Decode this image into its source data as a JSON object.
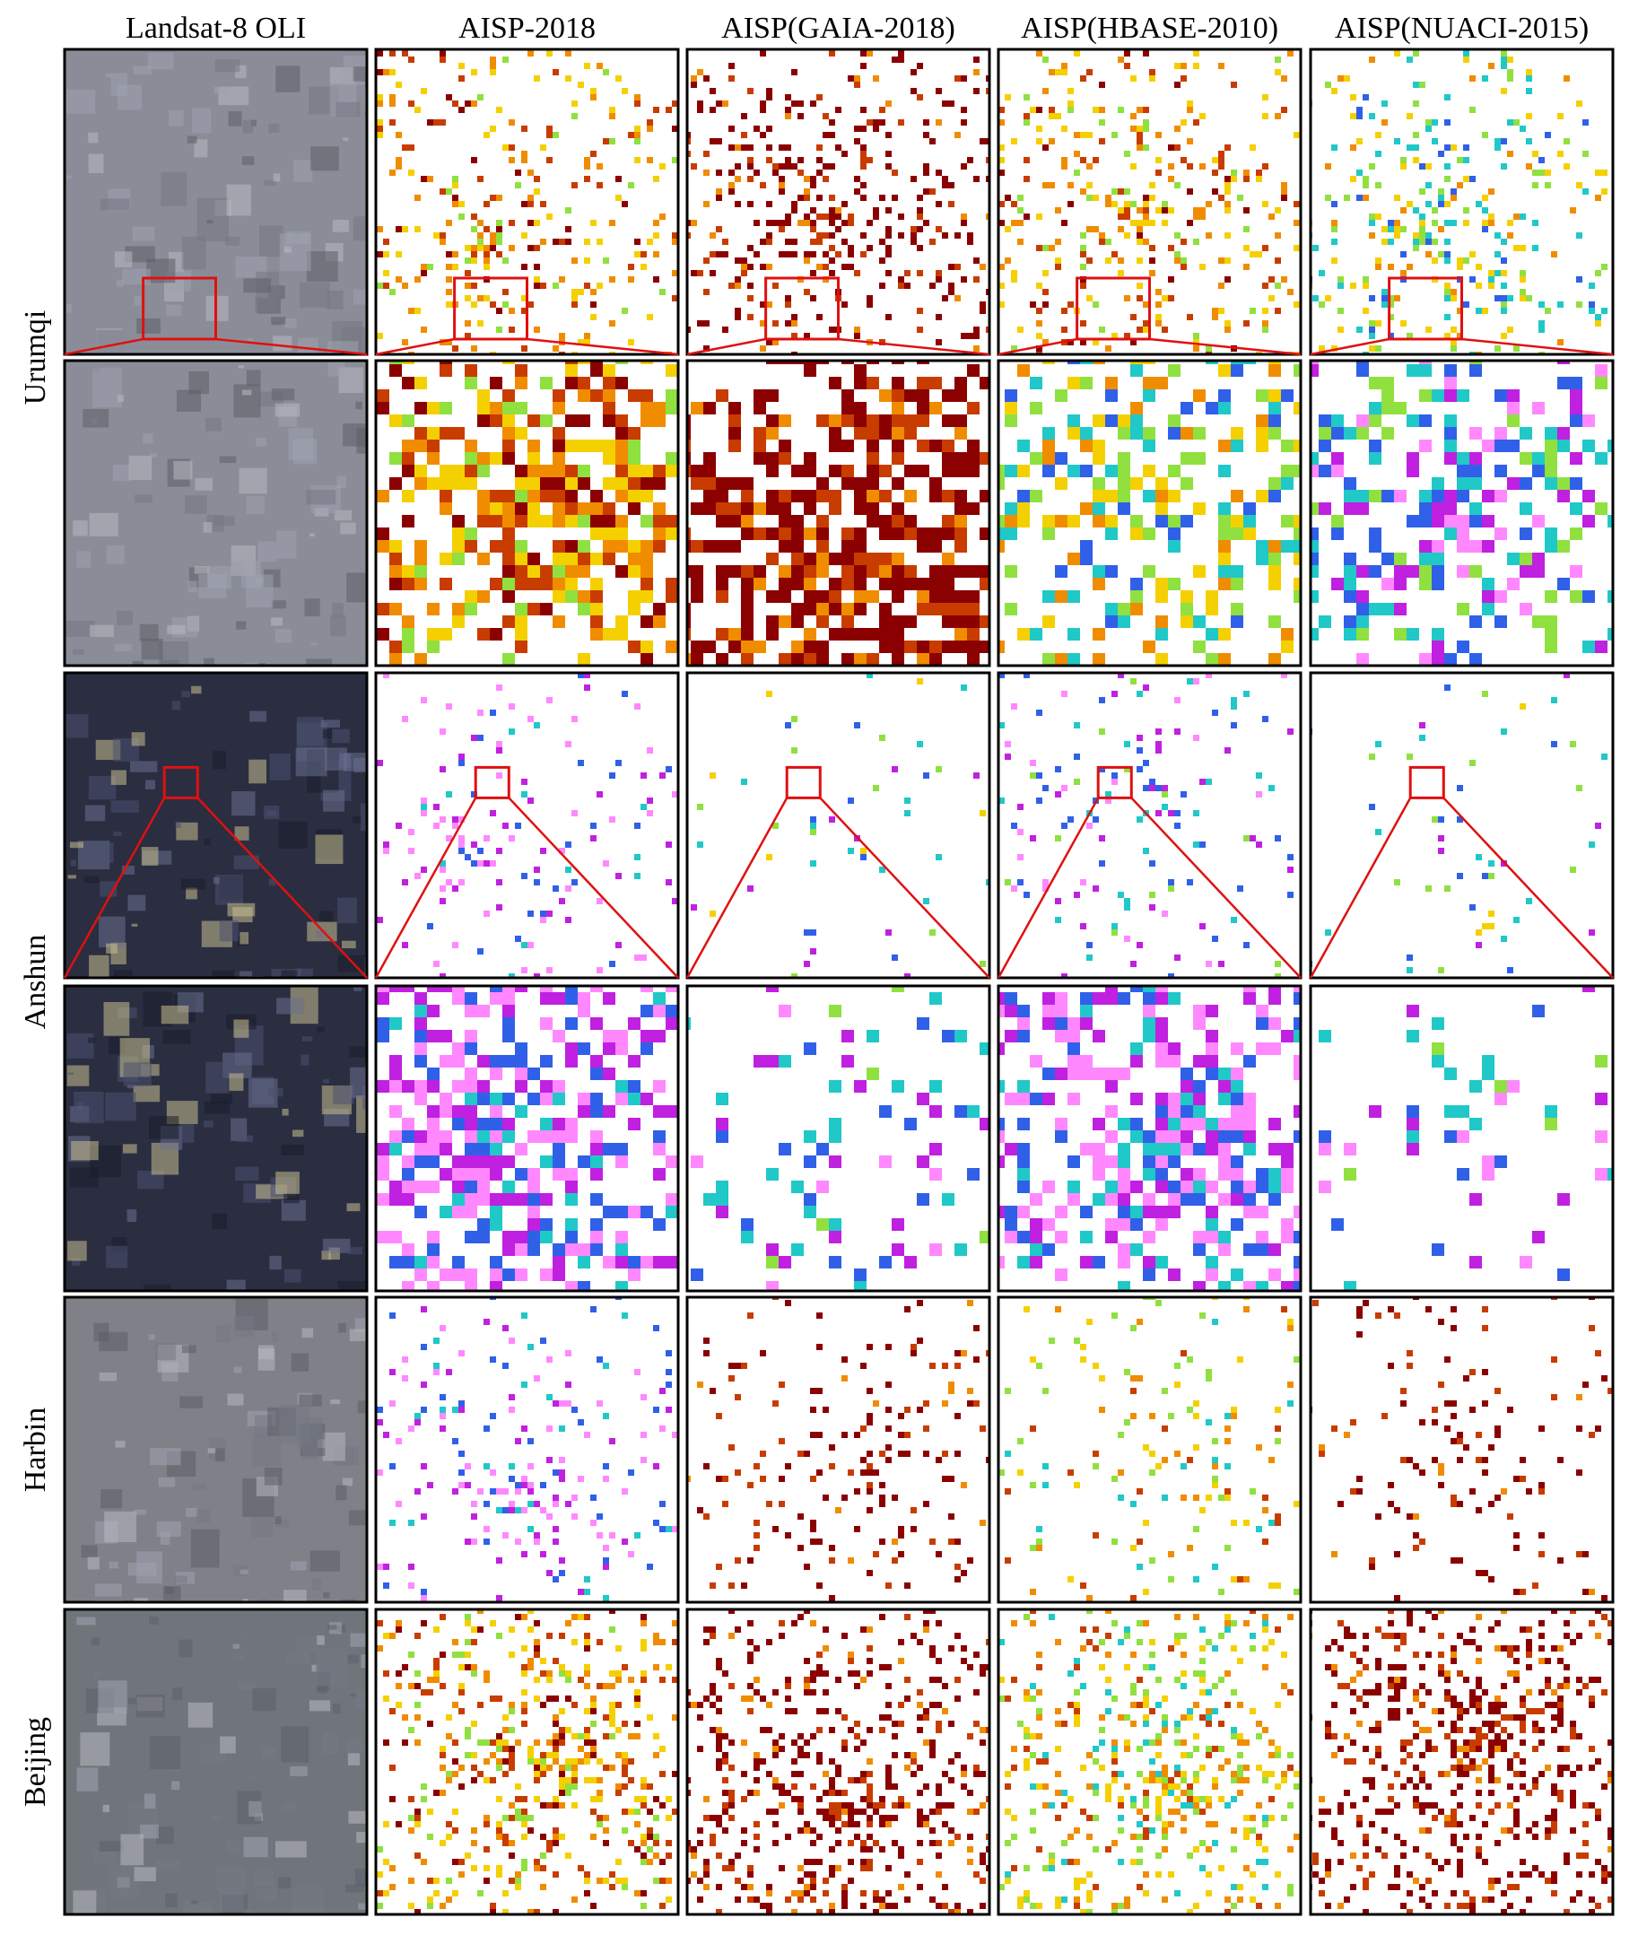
{
  "columns": [
    "Landsat-8 OLI",
    "AISP-2018",
    "AISP(GAIA-2018)",
    "AISP(HBASE-2010)",
    "AISP(NUACI-2015)"
  ],
  "rows": [
    "Urumqi",
    "Anshun",
    "Harbin",
    "Beijing"
  ]
}
